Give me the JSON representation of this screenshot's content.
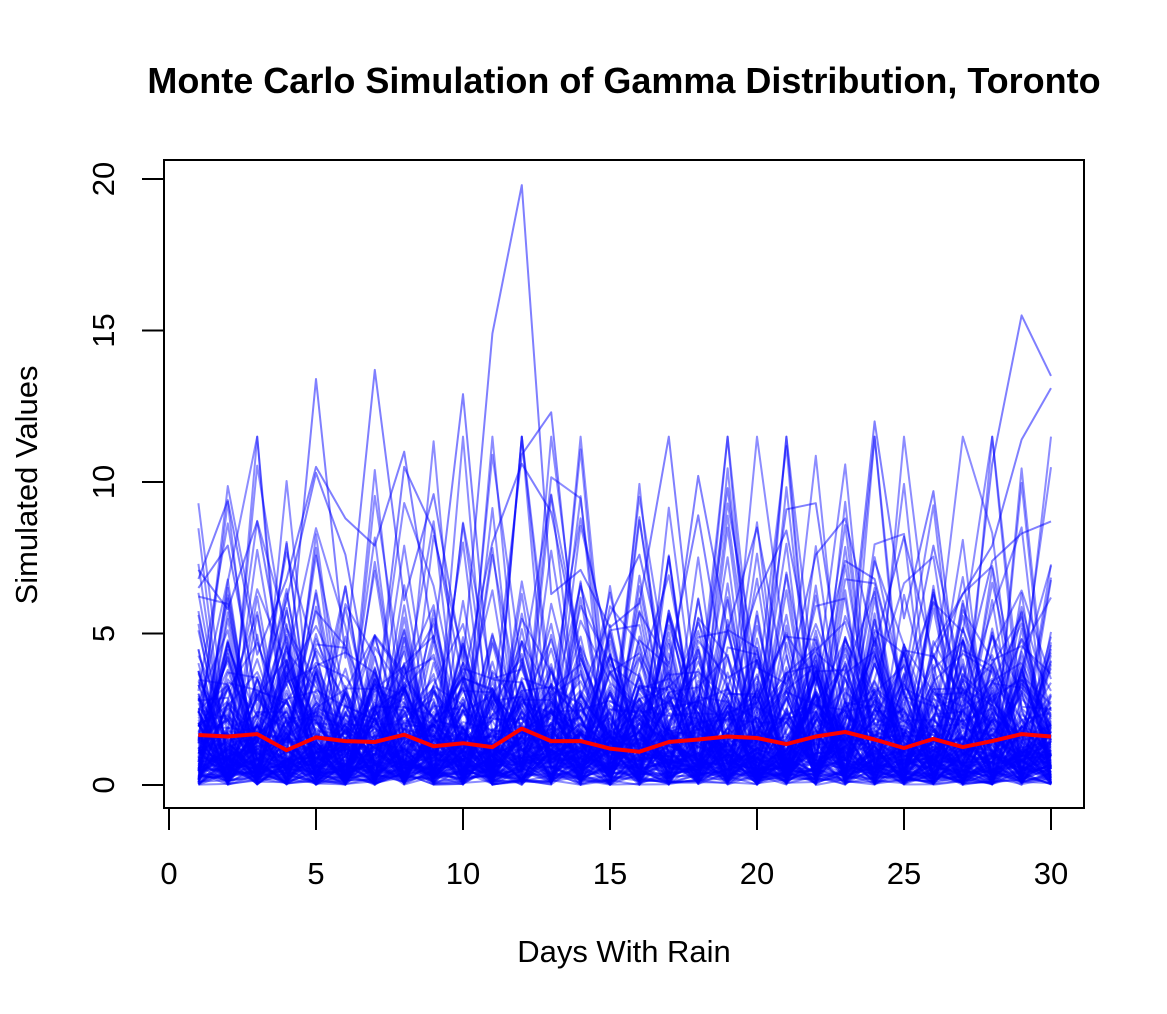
{
  "chart_data": {
    "type": "line",
    "title": "Monte Carlo Simulation of Gamma Distribution, Toronto",
    "xlabel": "Days With Rain",
    "ylabel": "Simulated Values",
    "xlim": [
      0,
      30
    ],
    "ylim": [
      0,
      20
    ],
    "x_ticks": [
      "0",
      "5",
      "10",
      "15",
      "20",
      "25",
      "30"
    ],
    "y_ticks": [
      "0",
      "5",
      "10",
      "15",
      "20"
    ],
    "x": [
      1,
      2,
      3,
      4,
      5,
      6,
      7,
      8,
      9,
      10,
      11,
      12,
      13,
      14,
      15,
      16,
      17,
      18,
      19,
      20,
      21,
      22,
      23,
      24,
      25,
      26,
      27,
      28,
      29,
      30
    ],
    "grid": false,
    "legend": "none",
    "colors": {
      "simulations": "#0000ff",
      "mean": "#ff0000",
      "axes": "#000000"
    },
    "series": [
      {
        "values": [
          1.65,
          1.6,
          1.68,
          1.15,
          1.57,
          1.45,
          1.42,
          1.66,
          1.28,
          1.38,
          1.25,
          1.86,
          1.45,
          1.45,
          1.2,
          1.1,
          1.42,
          1.5,
          1.6,
          1.55,
          1.35,
          1.6,
          1.75,
          1.5,
          1.22,
          1.52,
          1.25,
          1.45,
          1.68,
          1.6
        ]
      }
    ],
    "highlighted_runs": [
      [
        7.1,
        5.8,
        8.7,
        3.3,
        13.4,
        4.2,
        13.7,
        6.1,
        9.6,
        4.0,
        14.9,
        19.8,
        6.3,
        7.1,
        5.2,
        6.0,
        11.5,
        2.7,
        9.8,
        2.4,
        9.1,
        9.3,
        2.7,
        12.0,
        5.5,
        9.7,
        2.0,
        10.6,
        15.5,
        13.5
      ],
      [
        6.8,
        9.4,
        4.3,
        6.8,
        10.5,
        8.8,
        7.9,
        11.0,
        4.7,
        12.9,
        2.5,
        10.9,
        12.3,
        2.9,
        5.6,
        7.6,
        3.3,
        10.2,
        5.1,
        8.5,
        3.2,
        7.6,
        8.8,
        4.6,
        8.2,
        4.2,
        6.3,
        7.9,
        11.4,
        13.1
      ],
      [
        6.5,
        7.9,
        2.8,
        6.1,
        10.3,
        7.6,
        2.3,
        10.5,
        8.4,
        3.4,
        8.0,
        10.6,
        9.0,
        4.2,
        1.8,
        5.7,
        4.0,
        8.9,
        3.2,
        6.3,
        8.4,
        3.3,
        7.4,
        6.8,
        3.0,
        7.9,
        3.4,
        7.4,
        8.3,
        8.7
      ]
    ]
  }
}
